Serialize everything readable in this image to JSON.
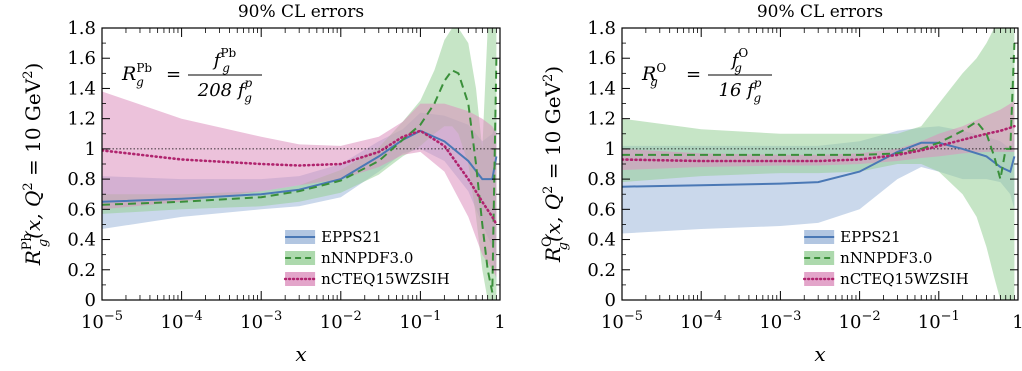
{
  "chart_data": [
    {
      "type": "line",
      "title": "90% CL errors",
      "xlabel": "x",
      "ylabel": "R_g^Pb(x, Q^2 = 10 GeV^2)",
      "ylabel_parts": {
        "main": "R",
        "sub": "g",
        "sup": "Pb",
        "args": "(x, Q",
        "args_sup": "2",
        "args_tail": " = 10 GeV",
        "unit_sup": "2",
        "close": ")"
      },
      "formula": {
        "lhs": "R",
        "lhs_sub": "g",
        "lhs_sup": "Pb",
        "eq": "=",
        "num": "f",
        "num_sub": "g",
        "num_sup": "Pb",
        "den": "208 f",
        "den_sub": "g",
        "den_sup": "p"
      },
      "x_scale": "log",
      "xlim": [
        1e-05,
        1
      ],
      "ylim": [
        0,
        1.8
      ],
      "xticks": [
        {
          "v": 1e-05,
          "base": "10",
          "exp": "−5"
        },
        {
          "v": 0.0001,
          "base": "10",
          "exp": "−4"
        },
        {
          "v": 0.001,
          "base": "10",
          "exp": "−3"
        },
        {
          "v": 0.01,
          "base": "10",
          "exp": "−2"
        },
        {
          "v": 0.1,
          "base": "10",
          "exp": "−1"
        },
        {
          "v": 1,
          "base": "1",
          "exp": ""
        }
      ],
      "yticks": [
        "0",
        "0.2",
        "0.4",
        "0.6",
        "0.8",
        "1",
        "1.2",
        "1.4",
        "1.6",
        "1.8"
      ],
      "reference_line": 1,
      "legend_position": "bottom-right",
      "series": [
        {
          "name": "EPPS21",
          "color": "#4a78b5",
          "band_color": "#9fb8da",
          "dash": "solid",
          "x": [
            1e-05,
            0.0001,
            0.001,
            0.003,
            0.01,
            0.03,
            0.06,
            0.1,
            0.2,
            0.4,
            0.6,
            0.8,
            0.9
          ],
          "central": [
            0.65,
            0.67,
            0.7,
            0.73,
            0.8,
            0.95,
            1.06,
            1.12,
            1.05,
            0.92,
            0.8,
            0.8,
            0.95
          ],
          "lower": [
            0.47,
            0.55,
            0.6,
            0.62,
            0.68,
            0.85,
            0.97,
            1.0,
            0.92,
            0.72,
            0.5,
            0.35,
            0.1
          ],
          "upper": [
            0.82,
            0.8,
            0.8,
            0.82,
            0.9,
            1.05,
            1.13,
            1.24,
            1.22,
            1.16,
            1.05,
            1.1,
            1.2
          ]
        },
        {
          "name": "nNNPDF3.0",
          "color": "#3a8f3a",
          "band_color": "#98cf98",
          "dash": "dashed",
          "x": [
            1e-05,
            0.0001,
            0.001,
            0.003,
            0.01,
            0.03,
            0.06,
            0.1,
            0.15,
            0.2,
            0.25,
            0.3,
            0.4,
            0.5,
            0.6,
            0.7,
            0.8,
            0.9
          ],
          "central": [
            0.63,
            0.65,
            0.68,
            0.72,
            0.79,
            0.92,
            1.06,
            1.16,
            1.3,
            1.45,
            1.52,
            1.5,
            1.3,
            0.9,
            0.5,
            0.2,
            0.05,
            1.6
          ],
          "lower": [
            0.57,
            0.6,
            0.62,
            0.65,
            0.71,
            0.83,
            0.95,
            1.02,
            1.1,
            1.15,
            1.15,
            1.1,
            0.9,
            0.55,
            0.2,
            0.0,
            0.0,
            0.0
          ],
          "upper": [
            0.7,
            0.7,
            0.72,
            0.76,
            0.86,
            1.01,
            1.18,
            1.32,
            1.52,
            1.72,
            1.8,
            1.8,
            1.7,
            1.4,
            1.0,
            1.8,
            1.8,
            1.8
          ]
        },
        {
          "name": "nCTEQ15WZSIH",
          "color": "#b0246e",
          "band_color": "#dc8fbd",
          "dash": "dotted",
          "x": [
            1e-05,
            0.0001,
            0.001,
            0.003,
            0.01,
            0.03,
            0.06,
            0.1,
            0.2,
            0.4,
            0.6,
            0.8,
            0.9
          ],
          "central": [
            0.99,
            0.93,
            0.9,
            0.89,
            0.9,
            0.98,
            1.08,
            1.12,
            1.02,
            0.8,
            0.65,
            0.55,
            0.5
          ],
          "lower": [
            0.6,
            0.65,
            0.72,
            0.76,
            0.8,
            0.88,
            0.96,
            0.98,
            0.85,
            0.55,
            0.3,
            0.2,
            0.15
          ],
          "upper": [
            1.38,
            1.2,
            1.08,
            1.03,
            1.02,
            1.08,
            1.18,
            1.3,
            1.3,
            1.25,
            1.2,
            1.15,
            1.1
          ]
        }
      ]
    },
    {
      "type": "line",
      "title": "90% CL errors",
      "xlabel": "x",
      "ylabel": "R_g^O(x, Q^2 = 10 GeV^2)",
      "ylabel_parts": {
        "main": "R",
        "sub": "g",
        "sup": "O",
        "args": "(x, Q",
        "args_sup": "2",
        "args_tail": " = 10 GeV",
        "unit_sup": "2",
        "close": ")"
      },
      "formula": {
        "lhs": "R",
        "lhs_sub": "g",
        "lhs_sup": "O",
        "eq": "=",
        "num": "f",
        "num_sub": "g",
        "num_sup": "O",
        "den": "16 f",
        "den_sub": "g",
        "den_sup": "p"
      },
      "x_scale": "log",
      "xlim": [
        1e-05,
        1
      ],
      "ylim": [
        0,
        1.8
      ],
      "xticks": [
        {
          "v": 1e-05,
          "base": "10",
          "exp": "−5"
        },
        {
          "v": 0.0001,
          "base": "10",
          "exp": "−4"
        },
        {
          "v": 0.001,
          "base": "10",
          "exp": "−3"
        },
        {
          "v": 0.01,
          "base": "10",
          "exp": "−2"
        },
        {
          "v": 0.1,
          "base": "10",
          "exp": "−1"
        },
        {
          "v": 1,
          "base": "1",
          "exp": ""
        }
      ],
      "yticks": [
        "0",
        "0.2",
        "0.4",
        "0.6",
        "0.8",
        "1",
        "1.2",
        "1.4",
        "1.6",
        "1.8"
      ],
      "reference_line": 1,
      "legend_position": "bottom-right",
      "series": [
        {
          "name": "EPPS21",
          "color": "#4a78b5",
          "band_color": "#9fb8da",
          "dash": "solid",
          "x": [
            1e-05,
            0.0001,
            0.001,
            0.003,
            0.01,
            0.03,
            0.06,
            0.1,
            0.2,
            0.4,
            0.6,
            0.8,
            0.9
          ],
          "central": [
            0.75,
            0.76,
            0.77,
            0.78,
            0.85,
            0.98,
            1.04,
            1.04,
            1.0,
            0.95,
            0.88,
            0.85,
            0.95
          ],
          "lower": [
            0.44,
            0.47,
            0.49,
            0.51,
            0.6,
            0.8,
            0.88,
            0.85,
            0.8,
            0.8,
            0.78,
            0.7,
            0.6
          ],
          "upper": [
            1.02,
            1.02,
            1.02,
            1.02,
            1.05,
            1.12,
            1.14,
            1.15,
            1.12,
            1.08,
            1.05,
            1.0,
            1.1
          ]
        },
        {
          "name": "nNNPDF3.0",
          "color": "#3a8f3a",
          "band_color": "#98cf98",
          "dash": "dashed",
          "x": [
            1e-05,
            0.0001,
            0.001,
            0.003,
            0.01,
            0.03,
            0.06,
            0.1,
            0.2,
            0.3,
            0.4,
            0.5,
            0.6,
            0.7,
            0.8,
            0.9
          ],
          "central": [
            0.96,
            0.96,
            0.96,
            0.96,
            0.96,
            0.97,
            1.0,
            1.04,
            1.12,
            1.18,
            1.1,
            0.95,
            0.8,
            1.0,
            1.0,
            1.7
          ],
          "lower": [
            0.78,
            0.82,
            0.84,
            0.84,
            0.85,
            0.9,
            0.9,
            0.85,
            0.7,
            0.55,
            0.35,
            0.15,
            0.0,
            0.0,
            0.0,
            0.0
          ],
          "upper": [
            1.2,
            1.13,
            1.1,
            1.1,
            1.1,
            1.1,
            1.15,
            1.3,
            1.5,
            1.6,
            1.7,
            1.8,
            1.8,
            1.8,
            1.8,
            1.8
          ]
        },
        {
          "name": "nCTEQ15WZSIH",
          "color": "#b0246e",
          "band_color": "#dc8fbd",
          "dash": "dotted",
          "x": [
            1e-05,
            0.0001,
            0.001,
            0.003,
            0.01,
            0.03,
            0.06,
            0.1,
            0.2,
            0.4,
            0.6,
            0.8,
            0.9
          ],
          "central": [
            0.93,
            0.92,
            0.92,
            0.92,
            0.93,
            0.96,
            0.99,
            1.02,
            1.06,
            1.1,
            1.12,
            1.14,
            1.15
          ],
          "lower": [
            0.86,
            0.88,
            0.89,
            0.89,
            0.9,
            0.92,
            0.94,
            0.95,
            0.97,
            0.98,
            0.98,
            0.98,
            0.98
          ],
          "upper": [
            1.0,
            0.97,
            0.96,
            0.96,
            0.97,
            1.0,
            1.05,
            1.1,
            1.15,
            1.22,
            1.26,
            1.3,
            1.32
          ]
        }
      ]
    }
  ]
}
